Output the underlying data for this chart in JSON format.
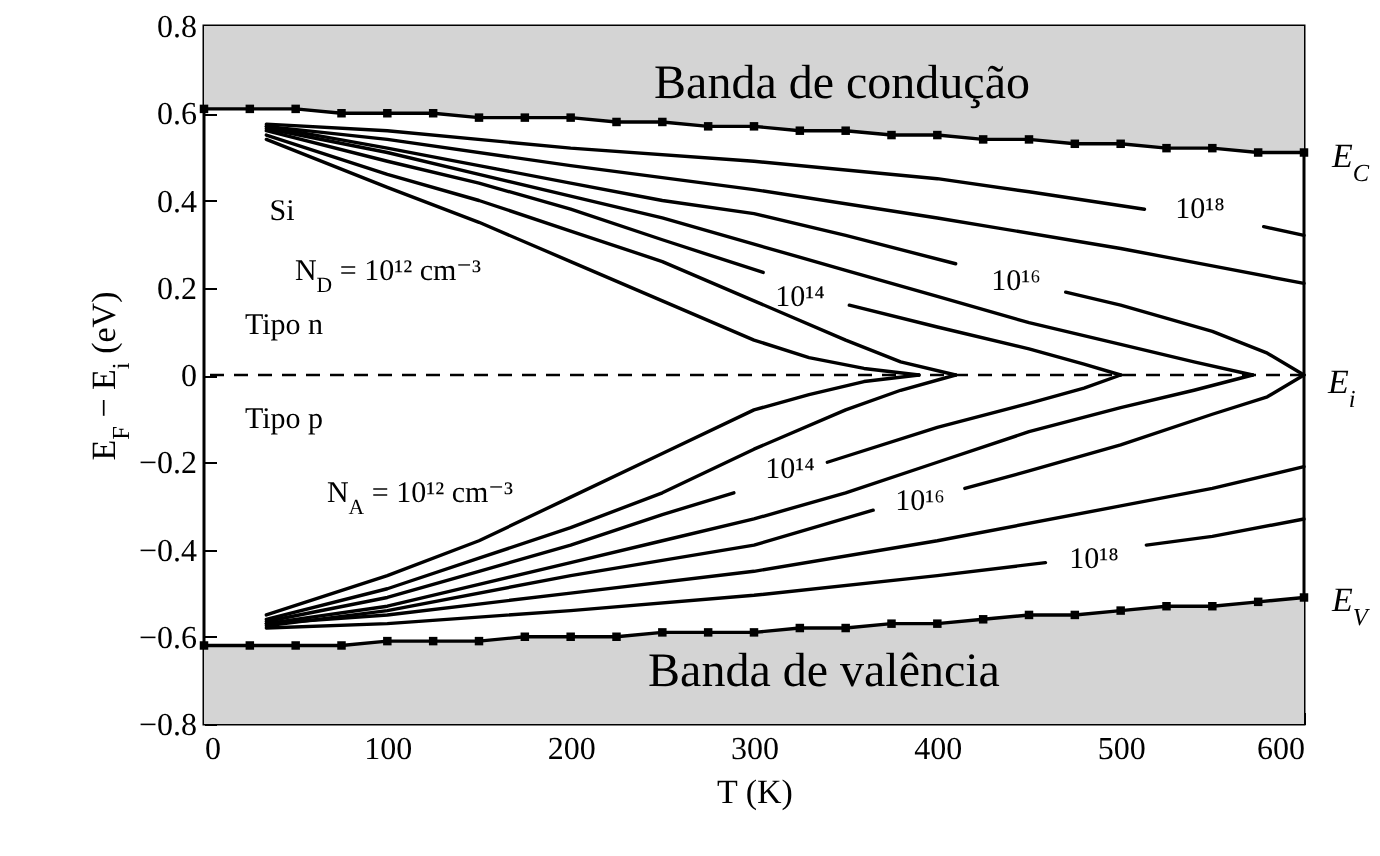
{
  "chart_data": {
    "type": "line",
    "xlabel": "T (K)",
    "ylabel": "E$_{F}$ − E$_{i}$ (eV)",
    "xlim": [
      0,
      600
    ],
    "xticks": [
      0,
      100,
      200,
      300,
      400,
      500,
      600
    ],
    "ylim": [
      -0.8,
      0.8
    ],
    "yticks": [
      {
        "value": -0.8,
        "label": "−0.8"
      },
      {
        "value": -0.6,
        "label": "−0.6"
      },
      {
        "value": -0.4,
        "label": "−0.4"
      },
      {
        "value": -0.2,
        "label": "−0.2"
      },
      0,
      0.2,
      0.4,
      0.6,
      0.8
    ],
    "ref_lines": [
      {
        "axis": "y",
        "value": 0,
        "label": "E$_{i}$",
        "line_style": "dashed",
        "color": "#000000"
      }
    ],
    "annotations": [
      "Banda de condução",
      "Banda de valência",
      "Si",
      "N$_{D}$ = 10¹² cm⁻³",
      "Tipo n",
      "Tipo p",
      "N$_{A}$ = 10¹² cm⁻³",
      "10¹⁴",
      "10¹⁶",
      "10¹⁸",
      "10¹⁴",
      "10¹⁶",
      "10¹⁸"
    ],
    "series": [
      {
        "name": "E$_{C}$",
        "color": "#000000",
        "marker": "square",
        "x": [
          0,
          25,
          50,
          75,
          100,
          125,
          150,
          175,
          200,
          225,
          250,
          275,
          300,
          325,
          350,
          375,
          400,
          425,
          450,
          475,
          500,
          525,
          550,
          575,
          600
        ],
        "values": [
          0.61,
          0.61,
          0.61,
          0.6,
          0.6,
          0.6,
          0.59,
          0.59,
          0.59,
          0.58,
          0.58,
          0.57,
          0.57,
          0.56,
          0.56,
          0.55,
          0.55,
          0.54,
          0.54,
          0.53,
          0.53,
          0.52,
          0.52,
          0.51,
          0.51
        ],
        "lower": [
          0.61,
          0.61,
          0.61,
          0.6,
          0.6,
          0.6,
          0.59,
          0.59,
          0.59,
          0.58,
          0.58,
          0.57,
          0.57,
          0.56,
          0.56,
          0.55,
          0.55,
          0.54,
          0.54,
          0.53,
          0.53,
          0.52,
          0.52,
          0.51,
          0.51
        ],
        "upper": [
          0.8,
          0.8,
          0.8,
          0.8,
          0.8,
          0.8,
          0.8,
          0.8,
          0.8,
          0.8,
          0.8,
          0.8,
          0.8,
          0.8,
          0.8,
          0.8,
          0.8,
          0.8,
          0.8,
          0.8,
          0.8,
          0.8,
          0.8,
          0.8,
          0.8
        ]
      },
      {
        "name": "E$_{V}$",
        "color": "#000000",
        "marker": "square",
        "x": [
          0,
          25,
          50,
          75,
          100,
          125,
          150,
          175,
          200,
          225,
          250,
          275,
          300,
          325,
          350,
          375,
          400,
          425,
          450,
          475,
          500,
          525,
          550,
          575,
          600
        ],
        "values": [
          -0.62,
          -0.62,
          -0.62,
          -0.62,
          -0.61,
          -0.61,
          -0.61,
          -0.6,
          -0.6,
          -0.6,
          -0.59,
          -0.59,
          -0.59,
          -0.58,
          -0.58,
          -0.57,
          -0.57,
          -0.56,
          -0.55,
          -0.55,
          -0.54,
          -0.53,
          -0.53,
          -0.52,
          -0.51
        ],
        "lower": [
          -0.8,
          -0.8,
          -0.8,
          -0.8,
          -0.8,
          -0.8,
          -0.8,
          -0.8,
          -0.8,
          -0.8,
          -0.8,
          -0.8,
          -0.8,
          -0.8,
          -0.8,
          -0.8,
          -0.8,
          -0.8,
          -0.8,
          -0.8,
          -0.8,
          -0.8,
          -0.8,
          -0.8,
          -0.8
        ],
        "upper": [
          -0.62,
          -0.62,
          -0.62,
          -0.62,
          -0.61,
          -0.61,
          -0.61,
          -0.6,
          -0.6,
          -0.6,
          -0.59,
          -0.59,
          -0.59,
          -0.58,
          -0.58,
          -0.57,
          -0.57,
          -0.56,
          -0.55,
          -0.55,
          -0.54,
          -0.53,
          -0.53,
          -0.52,
          -0.51
        ]
      },
      {
        "color": "#000000",
        "x": [
          34,
          100,
          150,
          200,
          250,
          300,
          330,
          360,
          390
        ],
        "values": [
          0.54,
          0.43,
          0.35,
          0.26,
          0.17,
          0.08,
          0.04,
          0.015,
          0
        ]
      },
      {
        "color": "#000000",
        "x": [
          34,
          100,
          150,
          200,
          250,
          300,
          350,
          380,
          410
        ],
        "values": [
          0.55,
          0.46,
          0.4,
          0.33,
          0.26,
          0.17,
          0.08,
          0.03,
          0
        ]
      },
      {
        "color": "#000000",
        "x": [
          34,
          100,
          150,
          200,
          250,
          305,
          330,
          352,
          400,
          450,
          480,
          500
        ],
        "values": [
          0.56,
          0.49,
          0.44,
          0.38,
          0.31,
          0.235,
          null,
          0.16,
          0.11,
          0.06,
          0.025,
          0
        ]
      },
      {
        "color": "#000000",
        "x": [
          34,
          100,
          150,
          200,
          250,
          300,
          350,
          400,
          450,
          500,
          540,
          572
        ],
        "values": [
          0.565,
          0.51,
          0.46,
          0.41,
          0.36,
          0.3,
          0.24,
          0.18,
          0.12,
          0.07,
          0.03,
          0
        ]
      },
      {
        "color": "#000000",
        "x": [
          34,
          100,
          150,
          200,
          250,
          300,
          350,
          410,
          443,
          470,
          500,
          550,
          580,
          600
        ],
        "values": [
          0.57,
          0.52,
          0.48,
          0.44,
          0.4,
          0.37,
          0.32,
          0.255,
          null,
          0.19,
          0.16,
          0.1,
          0.05,
          0
        ]
      },
      {
        "color": "#000000",
        "x": [
          34,
          100,
          200,
          300,
          400,
          500,
          550,
          600
        ],
        "values": [
          0.57,
          0.54,
          0.48,
          0.425,
          0.36,
          0.29,
          0.25,
          0.21
        ]
      },
      {
        "color": "#000000",
        "x": [
          34,
          100,
          200,
          300,
          400,
          450,
          513,
          543,
          578,
          600
        ],
        "values": [
          0.575,
          0.56,
          0.52,
          0.49,
          0.45,
          0.42,
          0.38,
          null,
          0.34,
          0.32
        ]
      },
      {
        "color": "#000000",
        "x": [
          34,
          100,
          150,
          200,
          250,
          300,
          330,
          360,
          390
        ],
        "values": [
          -0.55,
          -0.46,
          -0.38,
          -0.28,
          -0.18,
          -0.08,
          -0.045,
          -0.015,
          0
        ]
      },
      {
        "color": "#000000",
        "x": [
          34,
          100,
          150,
          200,
          250,
          300,
          350,
          380,
          410
        ],
        "values": [
          -0.56,
          -0.49,
          -0.42,
          -0.35,
          -0.27,
          -0.17,
          -0.08,
          -0.035,
          0
        ]
      },
      {
        "color": "#000000",
        "x": [
          34,
          100,
          150,
          200,
          250,
          289,
          315,
          340,
          400,
          450,
          480,
          500
        ],
        "values": [
          -0.565,
          -0.51,
          -0.45,
          -0.39,
          -0.32,
          -0.27,
          null,
          -0.2,
          -0.12,
          -0.065,
          -0.03,
          0
        ]
      },
      {
        "color": "#000000",
        "x": [
          34,
          100,
          150,
          200,
          250,
          300,
          350,
          400,
          450,
          500,
          540,
          572
        ],
        "values": [
          -0.57,
          -0.53,
          -0.48,
          -0.43,
          -0.38,
          -0.33,
          -0.27,
          -0.2,
          -0.13,
          -0.075,
          -0.035,
          0
        ]
      },
      {
        "color": "#000000",
        "x": [
          34,
          100,
          200,
          300,
          365,
          390,
          415,
          450,
          500,
          550,
          580,
          600
        ],
        "values": [
          -0.575,
          -0.54,
          -0.46,
          -0.39,
          -0.31,
          null,
          -0.26,
          -0.22,
          -0.16,
          -0.09,
          -0.05,
          0
        ]
      },
      {
        "color": "#000000",
        "x": [
          34,
          100,
          200,
          300,
          400,
          500,
          550,
          600
        ],
        "values": [
          -0.57,
          -0.55,
          -0.5,
          -0.45,
          -0.38,
          -0.3,
          -0.26,
          -0.21
        ]
      },
      {
        "color": "#000000",
        "x": [
          34,
          100,
          200,
          300,
          400,
          459,
          485,
          514,
          550,
          600
        ],
        "values": [
          -0.58,
          -0.57,
          -0.54,
          -0.505,
          -0.46,
          -0.43,
          null,
          -0.39,
          -0.37,
          -0.33
        ]
      }
    ]
  }
}
